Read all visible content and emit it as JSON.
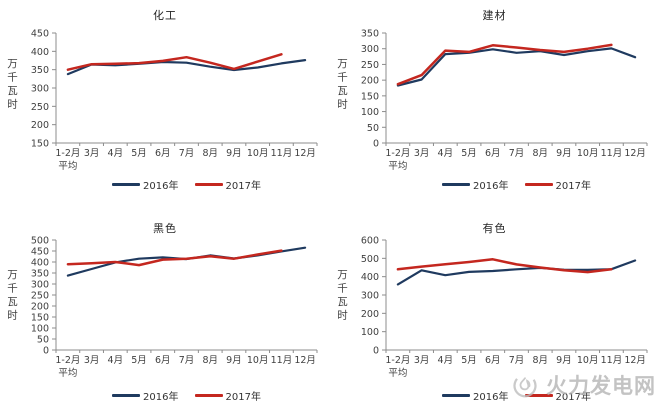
{
  "page": {
    "background": "#ffffff"
  },
  "watermark": {
    "text": "火力发电网",
    "logo_icon": "flame-circle-logo",
    "color": "#b5b5b5"
  },
  "axis": {
    "line_color": "#8c8c8c",
    "label_color": "#404040"
  },
  "chart_data": [
    {
      "type": "line",
      "title": "化工",
      "ylabel": "万千瓦时",
      "xlabel": "",
      "ylim": [
        150,
        450
      ],
      "ytick_step": 50,
      "grid": false,
      "legend_position": "bottom",
      "categories": [
        "1-2月",
        "3月",
        "4月",
        "5月",
        "6月",
        "7月",
        "8月",
        "9月",
        "10月",
        "11月",
        "12月"
      ],
      "xlabel_first_sub": "平均",
      "series": [
        {
          "name": "2016年",
          "color": "#1f3a5f",
          "values": [
            338,
            364,
            362,
            366,
            371,
            369,
            358,
            349,
            356,
            367,
            376
          ]
        },
        {
          "name": "2017年",
          "color": "#c4271f",
          "values": [
            350,
            365,
            366,
            368,
            374,
            384,
            369,
            352,
            372,
            392,
            null
          ]
        }
      ]
    },
    {
      "type": "line",
      "title": "建材",
      "ylabel": "万千瓦时",
      "xlabel": "",
      "ylim": [
        0,
        350
      ],
      "ytick_step": 50,
      "grid": false,
      "legend_position": "bottom",
      "categories": [
        "1-2月",
        "3月",
        "4月",
        "5月",
        "6月",
        "7月",
        "8月",
        "9月",
        "10月",
        "11月",
        "12月"
      ],
      "xlabel_first_sub": "平均",
      "series": [
        {
          "name": "2016年",
          "color": "#1f3a5f",
          "values": [
            183,
            202,
            283,
            287,
            298,
            287,
            292,
            280,
            292,
            301,
            273
          ]
        },
        {
          "name": "2017年",
          "color": "#c4271f",
          "values": [
            187,
            216,
            294,
            290,
            311,
            304,
            296,
            290,
            300,
            312,
            null
          ]
        }
      ]
    },
    {
      "type": "line",
      "title": "黑色",
      "ylabel": "万千瓦时",
      "xlabel": "",
      "ylim": [
        0,
        500
      ],
      "ytick_step": 50,
      "grid": false,
      "legend_position": "bottom",
      "categories": [
        "1-2月",
        "3月",
        "4月",
        "5月",
        "6月",
        "7月",
        "8月",
        "9月",
        "10月",
        "11月",
        "12月"
      ],
      "xlabel_first_sub": "平均",
      "series": [
        {
          "name": "2016年",
          "color": "#1f3a5f",
          "values": [
            338,
            368,
            398,
            415,
            421,
            413,
            430,
            416,
            430,
            448,
            465
          ]
        },
        {
          "name": "2017年",
          "color": "#c4271f",
          "values": [
            390,
            394,
            400,
            386,
            411,
            415,
            426,
            415,
            434,
            452,
            null
          ]
        }
      ]
    },
    {
      "type": "line",
      "title": "有色",
      "ylabel": "万千瓦时",
      "xlabel": "",
      "ylim": [
        0,
        600
      ],
      "ytick_step": 100,
      "grid": false,
      "legend_position": "bottom",
      "categories": [
        "1-2月",
        "3月",
        "4月",
        "5月",
        "6月",
        "7月",
        "8月",
        "9月",
        "10月",
        "11月",
        "12月"
      ],
      "xlabel_first_sub": "平均",
      "series": [
        {
          "name": "2016年",
          "color": "#1f3a5f",
          "values": [
            358,
            435,
            408,
            426,
            431,
            440,
            448,
            438,
            437,
            441,
            488
          ]
        },
        {
          "name": "2017年",
          "color": "#c4271f",
          "values": [
            440,
            455,
            468,
            480,
            495,
            467,
            450,
            435,
            425,
            440,
            null
          ]
        }
      ]
    }
  ]
}
